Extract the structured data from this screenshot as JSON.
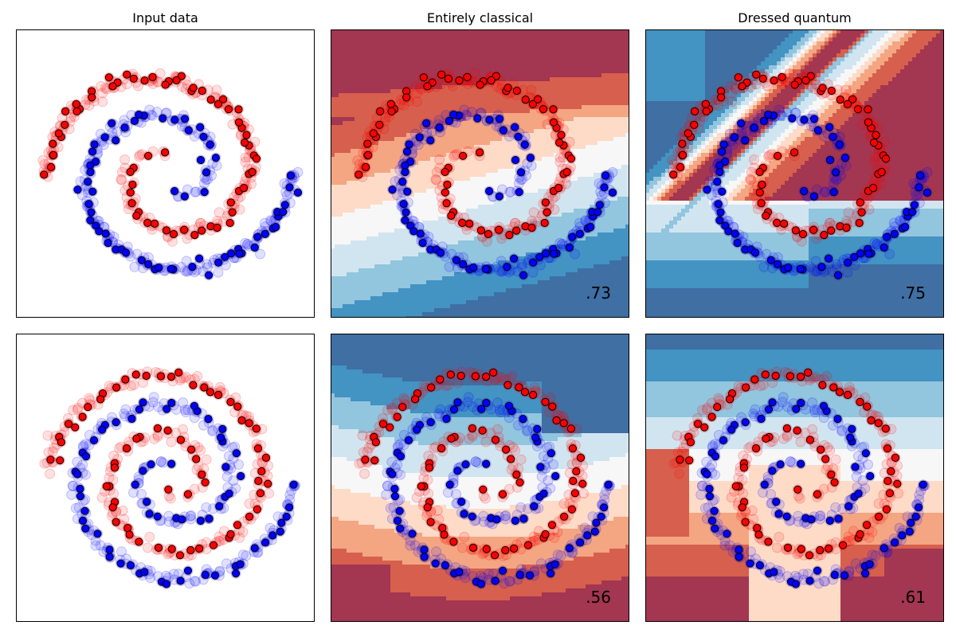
{
  "figure": {
    "column_titles": [
      "Input data",
      "Entirely classical",
      "Dressed quantum"
    ]
  },
  "colors": {
    "class_red": "#ff0000",
    "class_blue": "#0000ff",
    "marker_edge": "#000000",
    "boundary_scale_red_to_blue": [
      "#a33650",
      "#d6604d",
      "#f4a582",
      "#fddbc7",
      "#f7f7f7",
      "#d1e5f0",
      "#92c5de",
      "#4393c3",
      "#3f6fa3"
    ]
  },
  "chart_data": [
    {
      "type": "scatter",
      "panel": "top-left",
      "title": "Input data",
      "score": "",
      "dataset": "two spirals, 1.5 turns, red outer arm from upper right, blue arm ending lower left",
      "series": [
        {
          "color": "red"
        },
        {
          "color": "blue"
        }
      ],
      "background": "none"
    },
    {
      "type": "scatter",
      "panel": "top-middle",
      "title": "Entirely classical",
      "score": ".73",
      "series": [
        {
          "color": "red"
        },
        {
          "color": "blue"
        }
      ],
      "background": "decision-boundary contours, red top / blue bottom diagonal bands"
    },
    {
      "type": "scatter",
      "panel": "top-right",
      "title": "Dressed quantum",
      "score": ".75",
      "series": [
        {
          "color": "red"
        },
        {
          "color": "blue"
        }
      ],
      "background": "decision-boundary contours, blue upper-left and bottom, red wedge top-right"
    },
    {
      "type": "scatter",
      "panel": "bottom-left",
      "title": "",
      "score": "",
      "dataset": "two spirals, 2 turns, blue outer arm from right, red arm ending lower left",
      "series": [
        {
          "color": "blue"
        },
        {
          "color": "red"
        }
      ],
      "background": "none"
    },
    {
      "type": "scatter",
      "panel": "bottom-middle",
      "title": "",
      "score": ".56",
      "series": [
        {
          "color": "blue"
        },
        {
          "color": "red"
        }
      ],
      "background": "decision-boundary contours, blue top / red bottom bands"
    },
    {
      "type": "scatter",
      "panel": "bottom-right",
      "title": "",
      "score": ".61",
      "series": [
        {
          "color": "blue"
        },
        {
          "color": "red"
        }
      ],
      "background": "decision-boundary contours, blue top, mixed light/red bottom"
    }
  ]
}
